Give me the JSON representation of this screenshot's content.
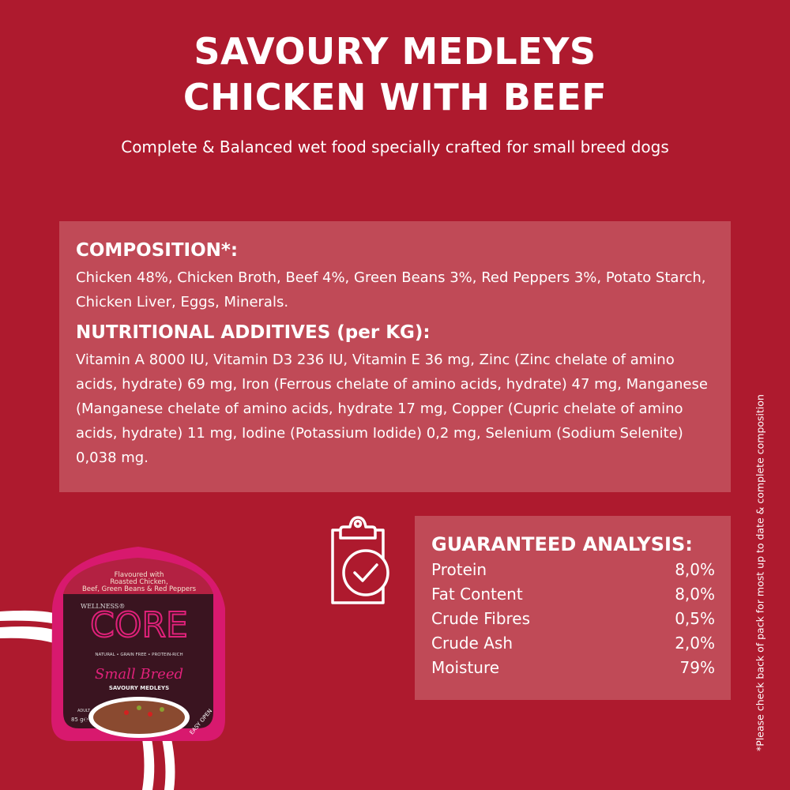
{
  "header": {
    "title_line1": "SAVOURY MEDLEYS",
    "title_line2": "CHICKEN WITH BEEF",
    "subtitle": "Complete & Balanced wet food specially crafted for small breed dogs"
  },
  "composition": {
    "heading": "COMPOSITION*:",
    "text": "Chicken 48%, Chicken Broth, Beef 4%, Green Beans 3%, Red Peppers 3%, Potato Starch, Chicken Liver, Eggs, Minerals.",
    "additives_heading": "NUTRITIONAL ADDITIVES (per KG):",
    "additives_text": "Vitamin A 8000 IU, Vitamin D3 236 IU, Vitamin E 36 mg, Zinc (Zinc chelate of amino acids, hydrate) 69 mg, Iron (Ferrous chelate of amino acids, hydrate) 47 mg, Manganese (Manganese chelate of amino acids, hydrate 17 mg, Copper (Cupric chelate of amino acids, hydrate) 11 mg, Iodine (Potassium Iodide) 0,2 mg, Selenium (Sodium Selenite) 0,038 mg."
  },
  "analysis": {
    "icon": "clipboard-check-icon",
    "heading": "GUARANTEED ANALYSIS:",
    "rows": [
      {
        "label": "Protein",
        "value": "8,0%"
      },
      {
        "label": "Fat Content",
        "value": "8,0%"
      },
      {
        "label": "Crude Fibres",
        "value": "0,5%"
      },
      {
        "label": "Crude Ash",
        "value": "2,0%"
      },
      {
        "label": "Moisture",
        "value": "79%"
      }
    ]
  },
  "pack": {
    "flavour": [
      "Flavoured with",
      "Roasted Chicken,",
      "Beef, Green Beans & Red Peppers"
    ],
    "brand_small": "WELLNESS®",
    "brand": "CORE",
    "tagline": "NATURAL • GRAIN FREE • PROTEIN-RICH",
    "range": "Small Breed",
    "product": "SAVOURY MEDLEYS",
    "life_stage": "ADULT",
    "weight": "85 g℮",
    "easy_open": "EASY OPEN"
  },
  "footnote": "*Please check back of pack for most up to date & complete composition",
  "colors": {
    "background": "#ae1a2e",
    "panel": "#c04a57",
    "pack_magenta": "#d8196e",
    "pack_dark": "#3a1420"
  }
}
